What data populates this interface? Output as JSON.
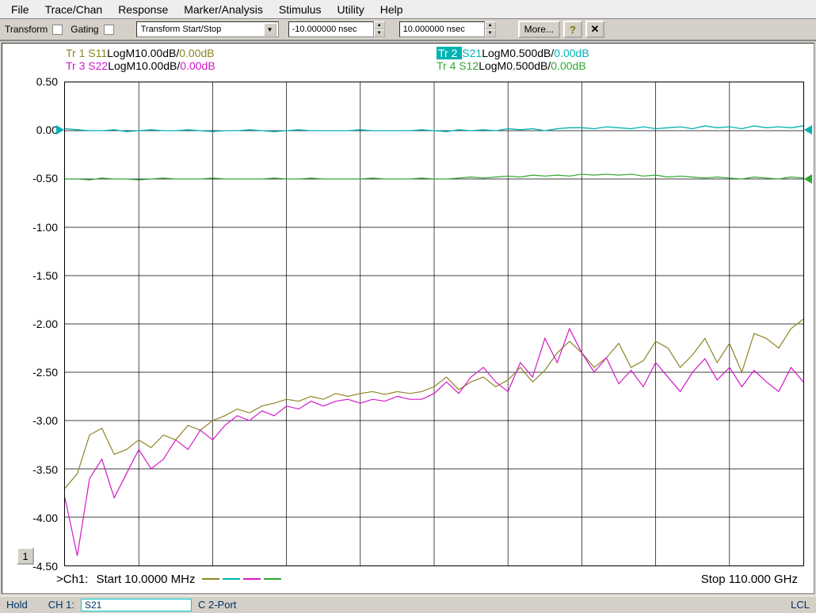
{
  "menu": {
    "items": [
      "File",
      "Trace/Chan",
      "Response",
      "Marker/Analysis",
      "Stimulus",
      "Utility",
      "Help"
    ]
  },
  "toolbar": {
    "transform_label": "Transform",
    "gating_label": "Gating",
    "combo_label": "Transform Start/Stop",
    "start_val": "-10.000000 nsec",
    "stop_val": "10.000000 nsec",
    "more_label": "More...",
    "help_glyph": "?",
    "close_glyph": "✕"
  },
  "legend": {
    "traces": [
      {
        "id": "Tr  1",
        "param": "S11",
        "fmt": "LogM",
        "scale": "10.00dB/",
        "ref": "0.00dB",
        "param_color": "#8f8526",
        "ref_color": "#8f8526",
        "highlight": false
      },
      {
        "id": "Tr  2",
        "param": "S21",
        "fmt": "LogM",
        "scale": "0.500dB/",
        "ref": "0.00dB",
        "param_color": "#00b3b3",
        "ref_color": "#00b3b3",
        "highlight": true
      },
      {
        "id": "Tr  3",
        "param": "S22",
        "fmt": "LogM",
        "scale": "10.00dB/",
        "ref": "0.00dB",
        "param_color": "#d218c8",
        "ref_color": "#d218c8",
        "highlight": false
      },
      {
        "id": "Tr  4",
        "param": "S12",
        "fmt": "LogM",
        "scale": "0.500dB/",
        "ref": "0.00dB",
        "param_color": "#2fa82f",
        "ref_color": "#2fa82f",
        "highlight": false
      }
    ]
  },
  "chart": {
    "type": "line",
    "background_color": "#ffffff",
    "grid_color": "#000000",
    "xdiv": 10,
    "ydiv": 10,
    "ylim": [
      -4.5,
      0.5
    ],
    "yticks": [
      "0.50",
      "0.00",
      "-0.50",
      "-1.00",
      "-1.50",
      "-2.00",
      "-2.50",
      "-3.00",
      "-3.50",
      "-4.00",
      "-4.50"
    ],
    "scale_tag": "1",
    "series": [
      {
        "name": "S21",
        "color": "#00b3b3",
        "width": 1.3,
        "values": [
          0.02,
          0.01,
          0.0,
          0.0,
          0.01,
          -0.01,
          0.0,
          0.01,
          0.0,
          0.0,
          0.01,
          0.0,
          -0.01,
          0.0,
          0.0,
          0.01,
          0.0,
          -0.01,
          0.0,
          0.01,
          0.0,
          0.0,
          0.0,
          0.0,
          0.01,
          0.0,
          0.0,
          0.0,
          0.0,
          0.01,
          0.0,
          -0.01,
          0.01,
          0.0,
          0.01,
          0.0,
          0.02,
          0.01,
          0.02,
          0.0,
          0.02,
          0.03,
          0.03,
          0.02,
          0.04,
          0.03,
          0.02,
          0.04,
          0.02,
          0.03,
          0.04,
          0.02,
          0.05,
          0.03,
          0.04,
          0.02,
          0.05,
          0.03,
          0.04,
          0.03,
          0.05
        ]
      },
      {
        "name": "S12",
        "color": "#2fa82f",
        "width": 1.2,
        "values": [
          -0.5,
          -0.5,
          -0.51,
          -0.49,
          -0.5,
          -0.5,
          -0.51,
          -0.5,
          -0.49,
          -0.5,
          -0.5,
          -0.5,
          -0.49,
          -0.5,
          -0.5,
          -0.5,
          -0.5,
          -0.49,
          -0.5,
          -0.5,
          -0.49,
          -0.5,
          -0.5,
          -0.5,
          -0.5,
          -0.49,
          -0.5,
          -0.5,
          -0.5,
          -0.49,
          -0.5,
          -0.5,
          -0.49,
          -0.48,
          -0.49,
          -0.48,
          -0.47,
          -0.48,
          -0.46,
          -0.47,
          -0.46,
          -0.47,
          -0.45,
          -0.46,
          -0.45,
          -0.46,
          -0.45,
          -0.47,
          -0.46,
          -0.48,
          -0.47,
          -0.48,
          -0.49,
          -0.48,
          -0.49,
          -0.5,
          -0.48,
          -0.49,
          -0.5,
          -0.48,
          -0.49
        ]
      },
      {
        "name": "S11",
        "color": "#8f8526",
        "width": 1.2,
        "values": [
          -3.7,
          -3.55,
          -3.15,
          -3.08,
          -3.35,
          -3.3,
          -3.2,
          -3.28,
          -3.15,
          -3.2,
          -3.05,
          -3.1,
          -3.0,
          -2.95,
          -2.88,
          -2.92,
          -2.85,
          -2.82,
          -2.78,
          -2.8,
          -2.75,
          -2.78,
          -2.72,
          -2.75,
          -2.72,
          -2.7,
          -2.73,
          -2.7,
          -2.72,
          -2.7,
          -2.65,
          -2.55,
          -2.68,
          -2.6,
          -2.55,
          -2.65,
          -2.58,
          -2.45,
          -2.6,
          -2.48,
          -2.3,
          -2.18,
          -2.3,
          -2.45,
          -2.35,
          -2.2,
          -2.45,
          -2.38,
          -2.18,
          -2.25,
          -2.45,
          -2.32,
          -2.15,
          -2.4,
          -2.2,
          -2.5,
          -2.1,
          -2.15,
          -2.25,
          -2.05,
          -1.95
        ]
      },
      {
        "name": "S22",
        "color": "#d218c8",
        "width": 1.2,
        "values": [
          -3.8,
          -4.4,
          -3.6,
          -3.4,
          -3.8,
          -3.55,
          -3.3,
          -3.5,
          -3.4,
          -3.2,
          -3.3,
          -3.1,
          -3.2,
          -3.05,
          -2.95,
          -3.0,
          -2.9,
          -2.95,
          -2.85,
          -2.88,
          -2.8,
          -2.85,
          -2.8,
          -2.78,
          -2.82,
          -2.78,
          -2.8,
          -2.75,
          -2.78,
          -2.78,
          -2.72,
          -2.6,
          -2.72,
          -2.55,
          -2.45,
          -2.6,
          -2.7,
          -2.4,
          -2.55,
          -2.15,
          -2.4,
          -2.05,
          -2.3,
          -2.5,
          -2.35,
          -2.62,
          -2.48,
          -2.65,
          -2.4,
          -2.55,
          -2.7,
          -2.5,
          -2.36,
          -2.58,
          -2.45,
          -2.65,
          -2.48,
          -2.6,
          -2.7,
          -2.45,
          -2.6
        ]
      }
    ],
    "markers": [
      {
        "side": "left",
        "y": 0.0,
        "color": "#00b3b3"
      },
      {
        "side": "right",
        "y": 0.0,
        "color": "#00b3b3"
      },
      {
        "side": "right",
        "y": -0.5,
        "color": "#2fa82f"
      }
    ]
  },
  "xaxis": {
    "prefix": ">Ch1:",
    "start": "Start  10.0000 MHz",
    "stop": "Stop 110.000 GHz",
    "legend_colors": [
      "#8f8526",
      "#00b3b3",
      "#d218c8",
      "#2fa82f"
    ]
  },
  "status": {
    "hold": "Hold",
    "ch": "CH 1:",
    "param": "S21",
    "port": "C 2-Port",
    "lcl": "LCL"
  }
}
